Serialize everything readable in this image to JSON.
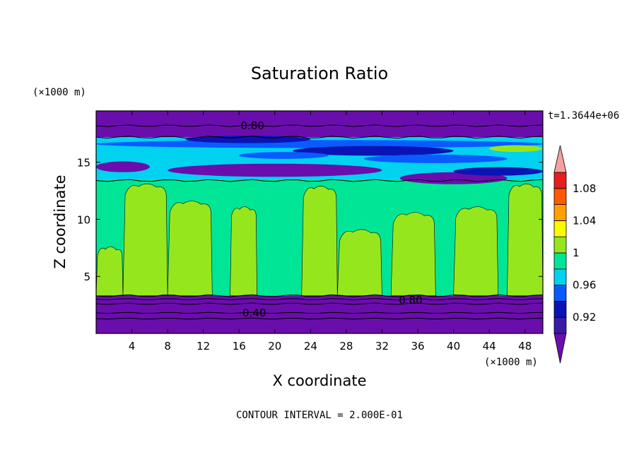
{
  "chart_data": {
    "type": "heatmap",
    "title": "Saturation Ratio",
    "xlabel": "X coordinate",
    "ylabel": "Z coordinate",
    "x_unit": "(×1000 m)",
    "y_unit": "(×1000 m)",
    "time_label": "t=1.3644e+06",
    "footer": "CONTOUR INTERVAL = 2.000E-01",
    "xlim": [
      0,
      50
    ],
    "ylim": [
      0,
      19.5
    ],
    "x_ticks": [
      4,
      8,
      12,
      16,
      20,
      24,
      28,
      32,
      36,
      40,
      44,
      48
    ],
    "y_ticks": [
      5,
      10,
      15
    ],
    "contour_labels": [
      {
        "text": "0.80",
        "x": 17.5,
        "z": 18.2
      },
      {
        "text": "0.80",
        "x": 35.2,
        "z": 2.9
      },
      {
        "text": "0.40",
        "x": 17.7,
        "z": 1.8
      }
    ],
    "colorbar": {
      "levels": [
        "0.92",
        "0.96",
        "1",
        "1.04",
        "1.08"
      ],
      "colors": [
        "#6a0dad",
        "#3a1aa8",
        "#0a14b4",
        "#0a5aff",
        "#00d2f0",
        "#00e696",
        "#96e61e",
        "#fafa00",
        "#ffa000",
        "#ff5a00",
        "#e61e1e",
        "#f5a0a0"
      ],
      "under_color": "#6a0dad",
      "over_color": "#f5a0a0"
    },
    "bands": {
      "surface_layer_top_z": 3.3,
      "upper_moist_layer_z": [
        13.5,
        17.2
      ],
      "top_dry_layer_z": [
        17.2,
        19.5
      ]
    },
    "plumes": [
      {
        "x": [
          0,
          3
        ],
        "top_z": 7.5
      },
      {
        "x": [
          3,
          8
        ],
        "top_z": 13.0
      },
      {
        "x": [
          8,
          13
        ],
        "top_z": 11.5
      },
      {
        "x": [
          15,
          18
        ],
        "top_z": 11.0
      },
      {
        "x": [
          23,
          27
        ],
        "top_z": 12.8
      },
      {
        "x": [
          27,
          32
        ],
        "top_z": 9.0
      },
      {
        "x": [
          33,
          38
        ],
        "top_z": 10.5
      },
      {
        "x": [
          40,
          45
        ],
        "top_z": 11.0
      },
      {
        "x": [
          46,
          50
        ],
        "top_z": 13.0
      }
    ]
  }
}
